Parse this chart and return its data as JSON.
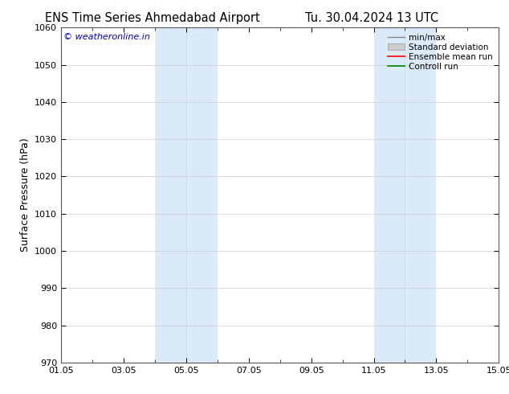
{
  "title_left": "ENS Time Series Ahmedabad Airport",
  "title_right": "Tu. 30.04.2024 13 UTC",
  "ylabel": "Surface Pressure (hPa)",
  "ylim": [
    970,
    1060
  ],
  "yticks": [
    970,
    980,
    990,
    1000,
    1010,
    1020,
    1030,
    1040,
    1050,
    1060
  ],
  "xlim": [
    0,
    14
  ],
  "xtick_positions": [
    0,
    2,
    4,
    6,
    8,
    10,
    12,
    14
  ],
  "xtick_labels": [
    "01.05",
    "03.05",
    "05.05",
    "07.05",
    "09.05",
    "11.05",
    "13.05",
    "15.05"
  ],
  "minor_xtick_positions": [
    1,
    3,
    5,
    7,
    9,
    11,
    13
  ],
  "shaded_regions": [
    {
      "x_start": 3,
      "x_end": 4,
      "color": "#daeaf8"
    },
    {
      "x_start": 4,
      "x_end": 5,
      "color": "#daeaf8"
    },
    {
      "x_start": 10,
      "x_end": 11,
      "color": "#daeaf8"
    },
    {
      "x_start": 11,
      "x_end": 12,
      "color": "#daeaf8"
    }
  ],
  "shaded_border_color": "#c0d8ee",
  "watermark_text": "© weatheronline.in",
  "watermark_color": "#0000cc",
  "legend_items": [
    {
      "label": "min/max",
      "color": "#888888",
      "lw": 1.0,
      "style": "line"
    },
    {
      "label": "Standard deviation",
      "color": "#cccccc",
      "lw": 5,
      "style": "band"
    },
    {
      "label": "Ensemble mean run",
      "color": "#ff0000",
      "lw": 1.2,
      "style": "line"
    },
    {
      "label": "Controll run",
      "color": "#008000",
      "lw": 1.2,
      "style": "line"
    }
  ],
  "bg_color": "#ffffff",
  "grid_color": "#cccccc",
  "title_fontsize": 10.5,
  "ylabel_fontsize": 9,
  "tick_fontsize": 8,
  "watermark_fontsize": 8,
  "legend_fontsize": 7.5
}
